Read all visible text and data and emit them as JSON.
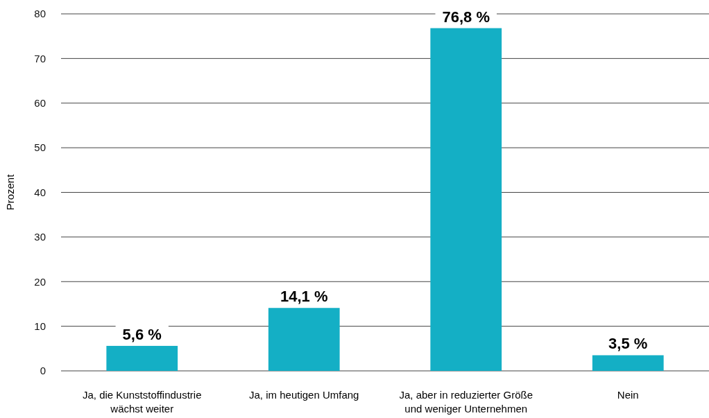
{
  "chart_data": {
    "type": "bar",
    "ylabel": "Prozent",
    "categories": [
      "Ja, die Kunststoffindustrie wächst weiter",
      "Ja, im heutigen Umfang",
      "Ja, aber in reduzierter Größe und weniger Unternehmen",
      "Nein"
    ],
    "values": [
      5.6,
      14.1,
      76.8,
      3.5
    ],
    "value_labels": [
      "5,6 %",
      "14,1 %",
      "76,8 %",
      "3,5 %"
    ],
    "color": "#14afc5",
    "ylim": [
      0,
      80
    ],
    "yticks": [
      0,
      10,
      20,
      30,
      40,
      50,
      60,
      70,
      80
    ],
    "grid": "y"
  }
}
